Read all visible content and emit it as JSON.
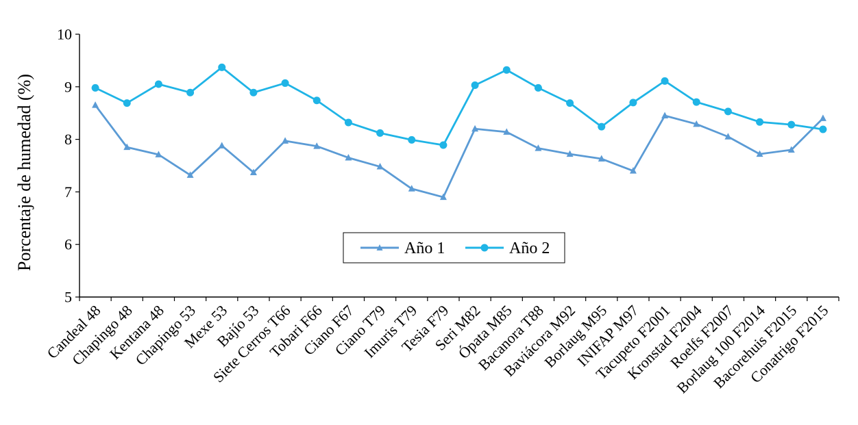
{
  "chart_data": {
    "type": "line",
    "title": "",
    "xlabel": "",
    "ylabel": "Porcentaje de humedad (%)",
    "ylim": [
      5,
      10
    ],
    "yticks": [
      "5",
      "6",
      "7",
      "8",
      "9",
      "10"
    ],
    "grid": false,
    "legend_position": "center",
    "categories": [
      "Candeal 48",
      "Chapingo 48",
      "Kentana 48",
      "Chapingo 53",
      "Mexe 53",
      "Bajío 53",
      "Siete Cerros T66",
      "Tobari F66",
      "Ciano F67",
      "Ciano T79",
      "Imuris T79",
      "Tesia F79",
      "Seri M82",
      "Ópata M85",
      "Bacanora T88",
      "Baviácora M92",
      "Borlaug M95",
      "INIFAP M97",
      "Tacupeto F2001",
      "Kronstad F2004",
      "Roelfs F2007",
      "Borlaug 100 F2014",
      "Bacorehuis F2015",
      "Conatrigo F2015"
    ],
    "series": [
      {
        "name": "Año 1",
        "marker": "triangle",
        "color": "#5b9bd5",
        "values": [
          8.65,
          7.85,
          7.71,
          7.32,
          7.88,
          7.37,
          7.97,
          7.87,
          7.65,
          7.48,
          7.06,
          6.9,
          8.2,
          8.14,
          7.83,
          7.72,
          7.63,
          7.4,
          8.45,
          8.29,
          8.05,
          7.72,
          7.8,
          8.4
        ]
      },
      {
        "name": "Año 2",
        "marker": "circle",
        "color": "#1fb4e6",
        "values": [
          8.98,
          8.69,
          9.05,
          8.89,
          9.37,
          8.89,
          9.07,
          8.74,
          8.32,
          8.12,
          7.99,
          7.89,
          9.03,
          9.32,
          8.98,
          8.69,
          8.24,
          8.7,
          9.11,
          8.71,
          8.53,
          8.33,
          8.28,
          8.19
        ]
      }
    ]
  }
}
